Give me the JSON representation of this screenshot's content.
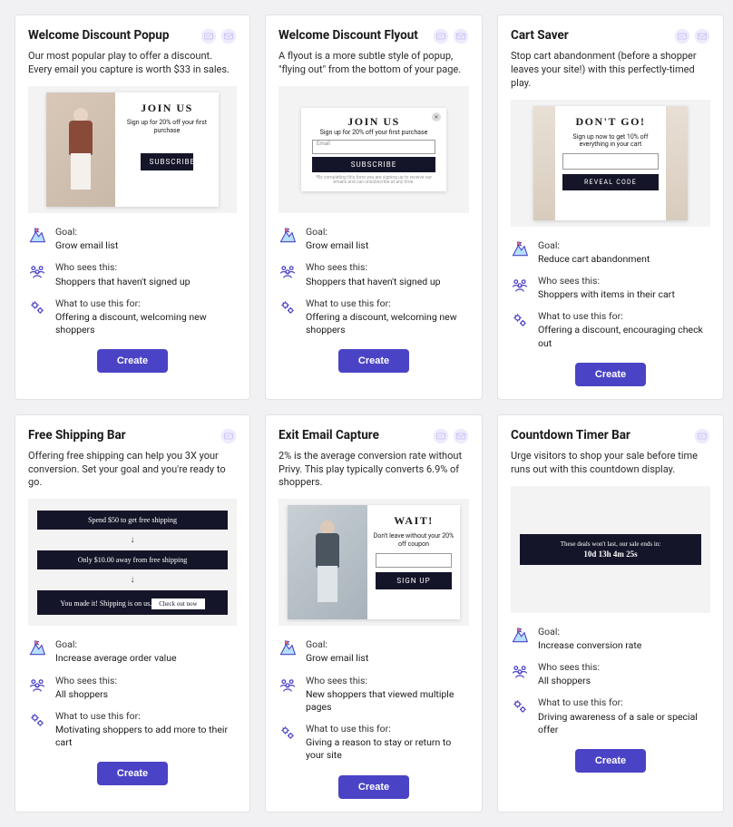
{
  "colors": {
    "accent": "#4b43c5",
    "icon_lavender": "#cfc6f6",
    "card_bg": "#ffffff",
    "page_bg": "#f1f1f3",
    "preview_bg": "#f3f3f4",
    "dark": "#15152a"
  },
  "icons": {
    "goal": {
      "type": "mountain-flag",
      "stroke": "#4b43c5",
      "fill": "#a7d8ff"
    },
    "audience": {
      "type": "people",
      "color": "#4b43c5"
    },
    "use": {
      "type": "gears",
      "color": "#4b43c5"
    }
  },
  "labels": {
    "goal": "Goal:",
    "who": "Who sees this:",
    "use": "What to use this for:",
    "create": "Create"
  },
  "cards": [
    {
      "title": "Welcome Discount Popup",
      "badges": [
        "popup-icon",
        "mail-icon"
      ],
      "desc": "Our most popular play to offer a discount. Every email you capture is worth $33 in sales.",
      "preview": {
        "type": "popup-image-left",
        "title": "JOIN US",
        "sub": "Sign up for 20% off your first purchase",
        "button": "SUBSCRIBE"
      },
      "goal": "Grow email list",
      "who": "Shoppers that haven't signed up",
      "use": "Offering a discount, welcoming new shoppers"
    },
    {
      "title": "Welcome Discount Flyout",
      "badges": [
        "popup-icon",
        "mail-icon"
      ],
      "desc": "A flyout is a more subtle style of popup, \"flying out\" from the bottom of your page.",
      "preview": {
        "type": "flyout",
        "title": "JOIN US",
        "sub": "Sign up for 20% off your first purchase",
        "placeholder": "Email",
        "button": "SUBSCRIBE",
        "disclaimer": "*By completing this form you are signing up to receive our emails and can unsubscribe at any time."
      },
      "goal": "Grow email list",
      "who": "Shoppers that haven't signed up",
      "use": "Offering a discount, welcoming new shoppers"
    },
    {
      "title": "Cart Saver",
      "badges": [
        "popup-icon",
        "mail-icon"
      ],
      "desc": "Stop cart abandonment (before a shopper leaves your site!) with this perfectly-timed play.",
      "preview": {
        "type": "cart",
        "title": "DON'T GO!",
        "sub": "Sign up now to get 10% off everything in your cart",
        "button": "REVEAL CODE"
      },
      "goal": "Reduce cart abandonment",
      "who": "Shoppers with items in their cart",
      "use": "Offering a discount, encouraging check out"
    },
    {
      "title": "Free Shipping Bar",
      "badges": [
        "popup-icon"
      ],
      "desc": "Offering free shipping can help you 3X your conversion. Set your goal and you're ready to go.",
      "preview": {
        "type": "bars",
        "bar1": "Spend $50 to get free shipping",
        "bar2": "Only $10.00 away from free shipping",
        "bar3": "You made it! Shipping is on us.",
        "bar3_btn": "Check out now"
      },
      "goal": "Increase average order value",
      "who": "All shoppers",
      "use": "Motivating shoppers to add more to their cart"
    },
    {
      "title": "Exit Email Capture",
      "badges": [
        "popup-icon",
        "mail-icon"
      ],
      "desc": "2% is the average conversion rate without Privy. This play typically converts 6.9% of shoppers.",
      "preview": {
        "type": "exit",
        "title": "WAIT!",
        "sub": "Don't leave without your 20% off coupon",
        "button": "SIGN UP"
      },
      "goal": "Grow email list",
      "who": "New shoppers that viewed multiple pages",
      "use": "Giving a reason to stay or return to your site"
    },
    {
      "title": "Countdown Timer Bar",
      "badges": [
        "popup-icon"
      ],
      "desc": "Urge visitors to shop your sale before time runs out with this countdown display.",
      "preview": {
        "type": "countdown",
        "line1": "These deals won't last, our sale ends in:",
        "line2": "10d 13h 4m 25s"
      },
      "goal": "Increase conversion rate",
      "who": "All shoppers",
      "use": "Driving awareness of a sale or special offer"
    }
  ]
}
